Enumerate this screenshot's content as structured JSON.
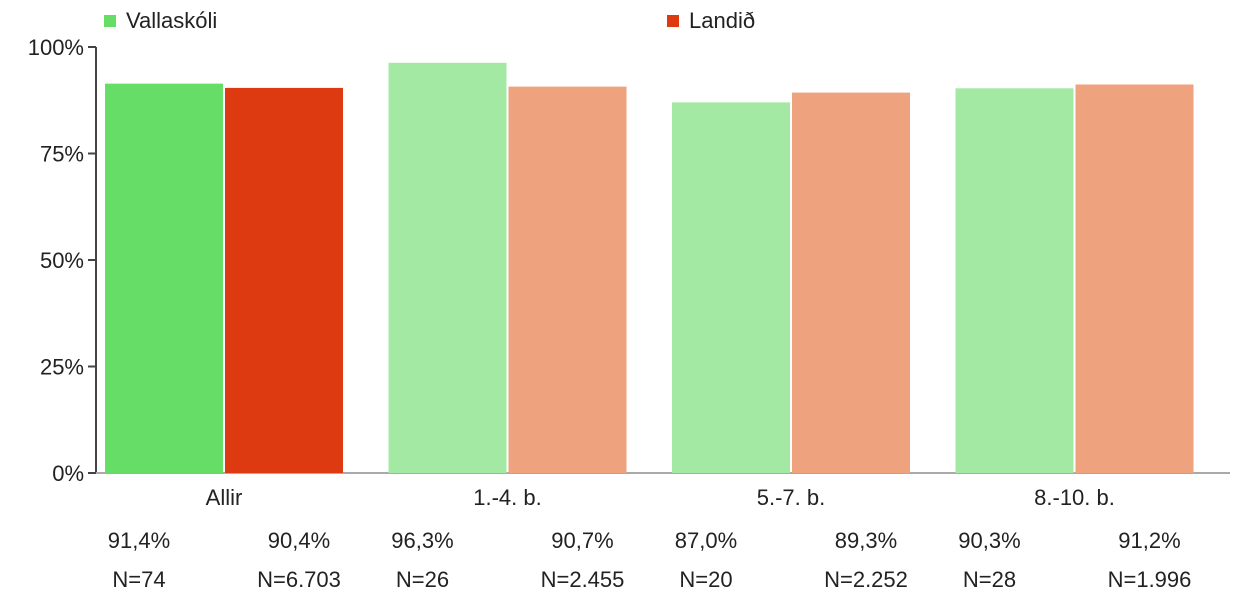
{
  "chart_data": {
    "type": "bar",
    "categories": [
      "Allir",
      "1.-4. b.",
      "5.-7. b.",
      "8.-10. b."
    ],
    "series": [
      {
        "name": "Vallaskóli",
        "values": [
          91.4,
          96.3,
          87.0,
          90.3
        ],
        "value_labels": [
          "91,4%",
          "96,3%",
          "87,0%",
          "90,3%"
        ],
        "n_labels": [
          "N=74",
          "N=26",
          "N=20",
          "N=28"
        ],
        "color": "#66dd66",
        "color_light": "#a3e8a3"
      },
      {
        "name": "Landið",
        "values": [
          90.4,
          90.7,
          89.3,
          91.2
        ],
        "value_labels": [
          "90,4%",
          "90,7%",
          "89,3%",
          "91,2%"
        ],
        "n_labels": [
          "N=6.703",
          "N=2.455",
          "N=2.252",
          "N=1.996"
        ],
        "color": "#dd3a12",
        "color_light": "#eea27e"
      }
    ],
    "ylim": [
      0,
      100
    ],
    "yticks": [
      0,
      25,
      50,
      75,
      100
    ],
    "ytick_labels": [
      "0%",
      "25%",
      "50%",
      "75%",
      "100%"
    ],
    "legend_position": "top",
    "grid": false
  }
}
